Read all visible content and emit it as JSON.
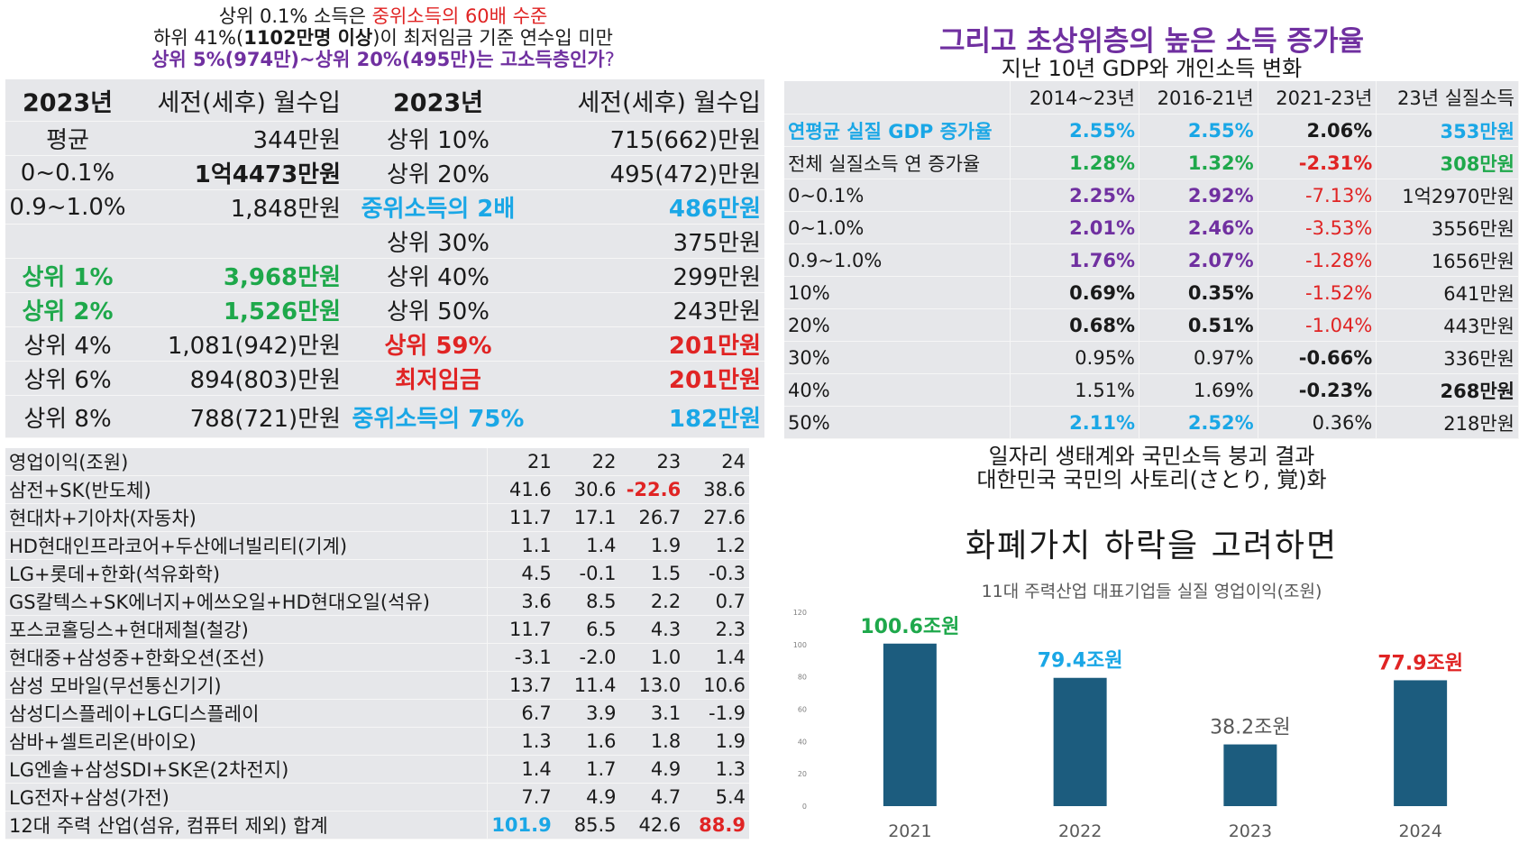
{
  "top_left": {
    "headline": {
      "line1_prefix": "상위 0.1% 소득은 ",
      "line1_highlight": "중위소득의 60배 수준",
      "line2_prefix": "하위 41%(",
      "line2_bold": "1102만명 이상",
      "line2_suffix": ")이 최저임금 기준 연수입 미만",
      "line3_bold": "상위 5%(974만)~상위 20%(495만)는 고소득층인가",
      "line3_suffix": "?"
    },
    "header": [
      "2023년",
      "세전(세후) 월수입",
      "2023년",
      "세전(세후) 월수입"
    ],
    "rows": [
      {
        "c1": "평균",
        "c2": "344만원",
        "c3": "상위 10%",
        "c4": "715(662)만원"
      },
      {
        "c1": "0~0.1%",
        "c2": "1억4473만원",
        "c3": "상위 20%",
        "c4": "495(472)만원"
      },
      {
        "c1": "0.9~1.0%",
        "c2": "1,848만원",
        "c3": "중위소득의 2배",
        "c4": "486만원"
      },
      {
        "c1": "",
        "c2": "",
        "c3": "상위 30%",
        "c4": "375만원"
      },
      {
        "c1": "상위 1%",
        "c2": "3,968만원",
        "c3": "상위 40%",
        "c4": "299만원"
      },
      {
        "c1": "상위 2%",
        "c2": "1,526만원",
        "c3": "상위 50%",
        "c4": "243만원"
      },
      {
        "c1": "상위 4%",
        "c2": "1,081(942)만원",
        "c3": "상위 59%",
        "c4": "201만원"
      },
      {
        "c1": "상위 6%",
        "c2": "894(803)만원",
        "c3": "최저임금",
        "c4": "201만원"
      },
      {
        "c1": "상위 8%",
        "c2": "788(721)만원",
        "c3": "중위소득의 75%",
        "c4": "182만원"
      }
    ]
  },
  "top_right": {
    "title": "그리고 초상위층의 높은 소득 증가율",
    "subtitle": "지난 10년 GDP와 개인소득 변화",
    "header": [
      "",
      "2014~23년",
      "2016-21년",
      "2021-23년",
      "23년 실질소득"
    ],
    "rows": [
      [
        "연평균 실질 GDP 증가율",
        "2.55%",
        "2.55%",
        "2.06%",
        "353만원"
      ],
      [
        "전체 실질소득 연 증가율",
        "1.28%",
        "1.32%",
        "-2.31%",
        "308만원"
      ],
      [
        "0~0.1%",
        "2.25%",
        "2.92%",
        "-7.13%",
        "1억2970만원"
      ],
      [
        "0~1.0%",
        "2.01%",
        "2.46%",
        "-3.53%",
        "3556만원"
      ],
      [
        "0.9~1.0%",
        "1.76%",
        "2.07%",
        "-1.28%",
        "1656만원"
      ],
      [
        "10%",
        "0.69%",
        "0.35%",
        "-1.52%",
        "641만원"
      ],
      [
        "20%",
        "0.68%",
        "0.51%",
        "-1.04%",
        "443만원"
      ],
      [
        "30%",
        "0.95%",
        "0.97%",
        "-0.66%",
        "336만원"
      ],
      [
        "40%",
        "1.51%",
        "1.69%",
        "-0.23%",
        "268만원"
      ],
      [
        "50%",
        "2.11%",
        "2.52%",
        "0.36%",
        "218만원"
      ]
    ]
  },
  "bottom_left": {
    "header": [
      "영업이익(조원)",
      "21",
      "22",
      "23",
      "24"
    ],
    "rows": [
      [
        "삼전+SK(반도체)",
        "41.6",
        "30.6",
        "-22.6",
        "38.6"
      ],
      [
        "현대차+기아차(자동차)",
        "11.7",
        "17.1",
        "26.7",
        "27.6"
      ],
      [
        "HD현대인프라코어+두산에너빌리티(기계)",
        "1.1",
        "1.4",
        "1.9",
        "1.2"
      ],
      [
        "LG+롯데+한화(석유화학)",
        "4.5",
        "-0.1",
        "1.5",
        "-0.3"
      ],
      [
        "GS칼텍스+SK에너지+에쓰오일+HD현대오일(석유)",
        "3.6",
        "8.5",
        "2.2",
        "0.7"
      ],
      [
        "포스코홀딩스+현대제철(철강)",
        "11.7",
        "6.5",
        "4.3",
        "2.3"
      ],
      [
        "현대중+삼성중+한화오션(조선)",
        "-3.1",
        "-2.0",
        "1.0",
        "1.4"
      ],
      [
        "삼성 모바일(무선통신기기)",
        "13.7",
        "11.4",
        "13.0",
        "10.6"
      ],
      [
        "삼성디스플레이+LG디스플레이",
        "6.7",
        "3.9",
        "3.1",
        "-1.9"
      ],
      [
        "삼바+셀트리온(바이오)",
        "1.3",
        "1.6",
        "1.8",
        "1.9"
      ],
      [
        "LG엔솔+삼성SDI+SK온(2차전지)",
        "1.4",
        "1.7",
        "4.9",
        "1.3"
      ],
      [
        "LG전자+삼성(가전)",
        "7.7",
        "4.9",
        "4.7",
        "5.4"
      ],
      [
        "12대 주력 산업(섬유, 컴퓨터 제외) 합계",
        "101.9",
        "85.5",
        "42.6",
        "88.9"
      ]
    ]
  },
  "bottom_right": {
    "headline1": "일자리 생태계와 국민소득 붕괴 결과",
    "headline2": "대한민국 국민의 사토리(さとり, 覚)화",
    "title": "화폐가치 하락을 고려하면"
  },
  "chart_data": {
    "type": "bar",
    "title": "11대 주력산업 대표기업들 실질 영업이익(조원)",
    "categories": [
      "2021",
      "2022",
      "2023",
      "2024"
    ],
    "values": [
      100.6,
      79.4,
      38.2,
      77.9
    ],
    "data_labels": [
      "100.6조원",
      "79.4조원",
      "38.2조원",
      "77.9조원"
    ],
    "label_colors": [
      "#1ea84b",
      "#1aa7e6",
      "#595959",
      "#e02424"
    ],
    "bar_color": "#1c5c7e",
    "ylim": [
      0,
      120
    ],
    "yticks": [
      "0",
      "20",
      "40",
      "60",
      "80",
      "100",
      "120"
    ],
    "grid": false,
    "legend": "none"
  }
}
